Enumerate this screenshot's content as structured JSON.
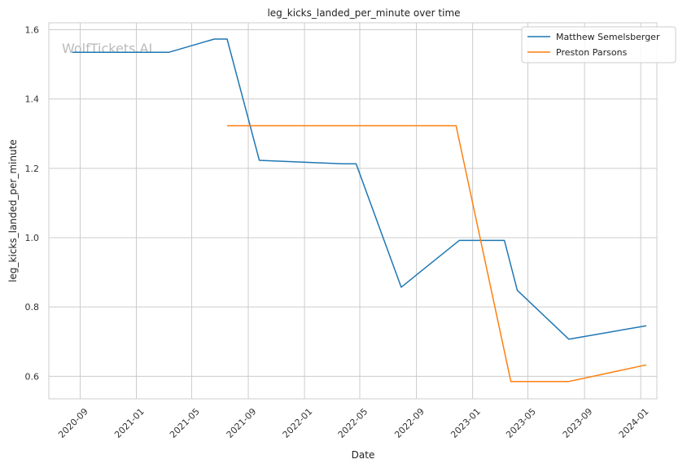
{
  "chart_data": {
    "type": "line",
    "title": "leg_kicks_landed_per_minute over time",
    "xlabel": "Date",
    "ylabel": "leg_kicks_landed_per_minute",
    "watermark": "WolfTickets.AI",
    "x_ticks": [
      "2020-09",
      "2021-01",
      "2021-05",
      "2021-09",
      "2022-01",
      "2022-05",
      "2022-09",
      "2023-01",
      "2023-05",
      "2023-09",
      "2024-01"
    ],
    "y_ticks": [
      "0.6",
      "0.8",
      "1.0",
      "1.2",
      "1.4",
      "1.6"
    ],
    "xlim": [
      "2020-06-25",
      "2024-02-05"
    ],
    "ylim": [
      0.535,
      1.62
    ],
    "grid": true,
    "legend_position": "top-right",
    "series": [
      {
        "name": "Matthew Semelsberger",
        "color": "#1f77b4",
        "points": [
          {
            "x": "2020-08-15",
            "y": 1.535
          },
          {
            "x": "2021-03-13",
            "y": 1.535
          },
          {
            "x": "2021-06-19",
            "y": 1.573
          },
          {
            "x": "2021-07-17",
            "y": 1.573
          },
          {
            "x": "2021-09-25",
            "y": 1.223
          },
          {
            "x": "2022-03-26",
            "y": 1.213
          },
          {
            "x": "2022-04-23",
            "y": 1.213
          },
          {
            "x": "2022-07-30",
            "y": 0.857
          },
          {
            "x": "2022-12-03",
            "y": 0.992
          },
          {
            "x": "2023-03-11",
            "y": 0.992
          },
          {
            "x": "2023-04-08",
            "y": 0.848
          },
          {
            "x": "2023-07-29",
            "y": 0.707
          },
          {
            "x": "2024-01-13",
            "y": 0.746
          }
        ]
      },
      {
        "name": "Preston Parsons",
        "color": "#ff7f0e",
        "points": [
          {
            "x": "2021-07-17",
            "y": 1.323
          },
          {
            "x": "2022-11-26",
            "y": 1.323
          },
          {
            "x": "2023-03-25",
            "y": 0.585
          },
          {
            "x": "2023-07-29",
            "y": 0.585
          },
          {
            "x": "2024-01-13",
            "y": 0.633
          }
        ]
      }
    ]
  }
}
